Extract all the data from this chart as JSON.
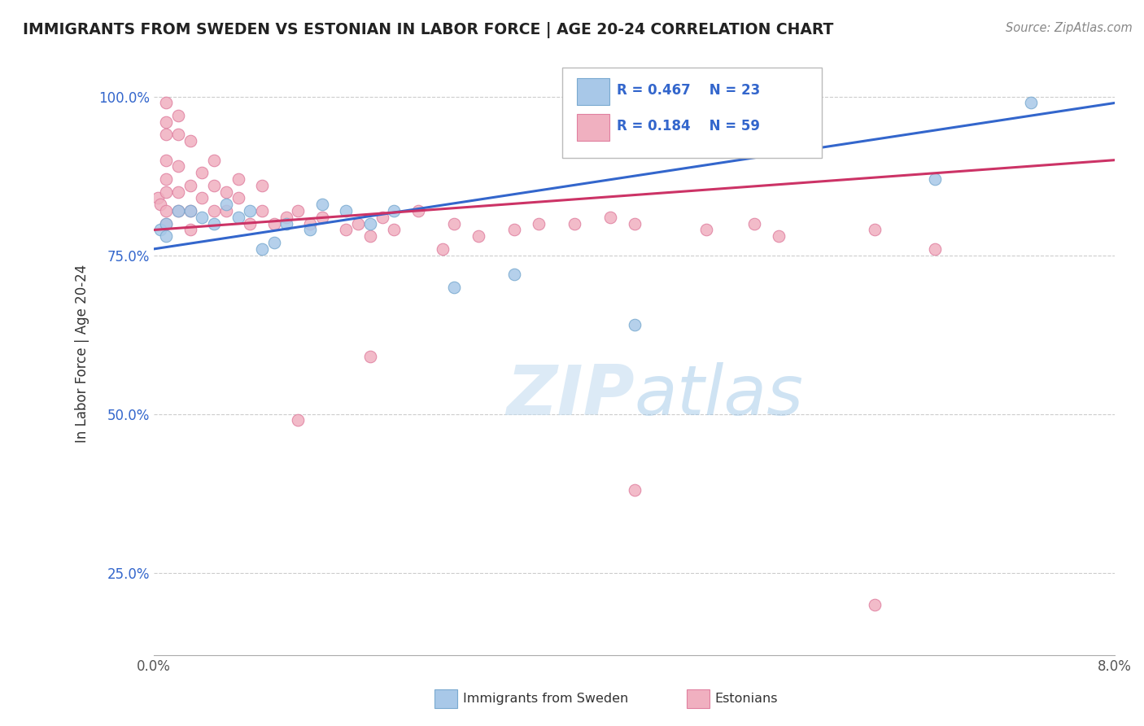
{
  "title": "IMMIGRANTS FROM SWEDEN VS ESTONIAN IN LABOR FORCE | AGE 20-24 CORRELATION CHART",
  "source": "Source: ZipAtlas.com",
  "ylabel": "In Labor Force | Age 20-24",
  "xlim": [
    0.0,
    0.08
  ],
  "ylim": [
    0.12,
    1.07
  ],
  "xtick_positions": [
    0.0,
    0.01,
    0.02,
    0.03,
    0.04,
    0.05,
    0.06,
    0.07,
    0.08
  ],
  "xticklabels": [
    "0.0%",
    "",
    "",
    "",
    "",
    "",
    "",
    "",
    "8.0%"
  ],
  "ytick_positions": [
    0.25,
    0.5,
    0.75,
    1.0
  ],
  "yticklabels": [
    "25.0%",
    "50.0%",
    "75.0%",
    "100.0%"
  ],
  "blue_color": "#a8c8e8",
  "blue_edge_color": "#7aaad0",
  "pink_color": "#f0b0c0",
  "pink_edge_color": "#e080a0",
  "blue_line_color": "#3366cc",
  "pink_line_color": "#cc3366",
  "legend_text_color": "#3366cc",
  "ytick_color": "#3366cc",
  "legend_r_blue": "R = 0.467",
  "legend_n_blue": "N = 23",
  "legend_r_pink": "R = 0.184",
  "legend_n_pink": "N = 59",
  "legend_label_blue": "Immigrants from Sweden",
  "legend_label_pink": "Estonians",
  "watermark": "ZIPatlas",
  "blue_x": [
    0.0005,
    0.001,
    0.001,
    0.002,
    0.003,
    0.004,
    0.005,
    0.006,
    0.007,
    0.008,
    0.009,
    0.01,
    0.011,
    0.013,
    0.014,
    0.016,
    0.018,
    0.02,
    0.025,
    0.03,
    0.04,
    0.065,
    0.073
  ],
  "blue_y": [
    0.79,
    0.8,
    0.78,
    0.82,
    0.82,
    0.81,
    0.8,
    0.83,
    0.81,
    0.82,
    0.76,
    0.77,
    0.8,
    0.79,
    0.83,
    0.82,
    0.8,
    0.82,
    0.7,
    0.72,
    0.64,
    0.87,
    0.99
  ],
  "pink_x": [
    0.0003,
    0.0005,
    0.001,
    0.001,
    0.001,
    0.001,
    0.001,
    0.001,
    0.001,
    0.001,
    0.002,
    0.002,
    0.002,
    0.002,
    0.002,
    0.003,
    0.003,
    0.003,
    0.003,
    0.004,
    0.004,
    0.005,
    0.005,
    0.005,
    0.006,
    0.006,
    0.007,
    0.007,
    0.008,
    0.009,
    0.009,
    0.01,
    0.011,
    0.012,
    0.013,
    0.014,
    0.016,
    0.017,
    0.018,
    0.019,
    0.02,
    0.022,
    0.024,
    0.025,
    0.027,
    0.03,
    0.032,
    0.035,
    0.038,
    0.04,
    0.046,
    0.05,
    0.052,
    0.06,
    0.065,
    0.012,
    0.018,
    0.04,
    0.06
  ],
  "pink_y": [
    0.84,
    0.83,
    0.99,
    0.96,
    0.94,
    0.9,
    0.87,
    0.85,
    0.82,
    0.8,
    0.97,
    0.94,
    0.89,
    0.85,
    0.82,
    0.93,
    0.86,
    0.82,
    0.79,
    0.88,
    0.84,
    0.9,
    0.86,
    0.82,
    0.85,
    0.82,
    0.87,
    0.84,
    0.8,
    0.86,
    0.82,
    0.8,
    0.81,
    0.82,
    0.8,
    0.81,
    0.79,
    0.8,
    0.78,
    0.81,
    0.79,
    0.82,
    0.76,
    0.8,
    0.78,
    0.79,
    0.8,
    0.8,
    0.81,
    0.8,
    0.79,
    0.8,
    0.78,
    0.79,
    0.76,
    0.49,
    0.59,
    0.38,
    0.2
  ],
  "blue_line_x0": 0.0,
  "blue_line_y0": 0.76,
  "blue_line_x1": 0.08,
  "blue_line_y1": 0.99,
  "pink_line_x0": 0.0,
  "pink_line_y0": 0.79,
  "pink_line_x1": 0.08,
  "pink_line_y1": 0.9
}
